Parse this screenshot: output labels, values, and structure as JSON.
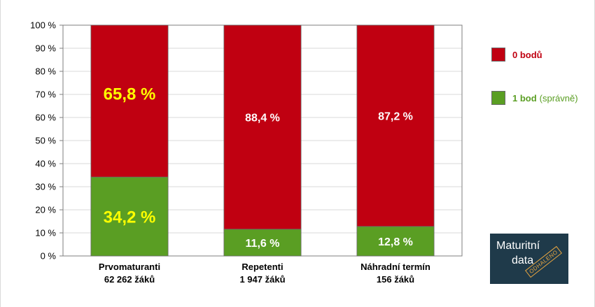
{
  "chart_data": {
    "type": "bar",
    "stacked": true,
    "categories": [
      [
        "Prvomaturanti",
        "62 262 žáků"
      ],
      [
        "Repetenti",
        "1 947 žáků"
      ],
      [
        "Náhradní termín",
        "156 žáků"
      ]
    ],
    "series": [
      {
        "name": "1 bod",
        "name_note": "(správně)",
        "color": "#5a9e23",
        "values": [
          34.2,
          11.6,
          12.8
        ],
        "labels": [
          "34,2 %",
          "11,6 %",
          "12,8 %"
        ]
      },
      {
        "name": "0 bodů",
        "color": "#c00011",
        "values": [
          65.8,
          88.4,
          87.2
        ],
        "labels": [
          "65,8 %",
          "88,4 %",
          "87,2 %"
        ]
      }
    ],
    "highlight_first_category_labels": {
      "color": "#ffff00"
    },
    "y_ticks": [
      "0 %",
      "10 %",
      "20 %",
      "30 %",
      "40 %",
      "50 %",
      "60 %",
      "70 %",
      "80 %",
      "90 %",
      "100 %"
    ],
    "ylim": [
      0,
      100
    ],
    "grid": true,
    "legend_position": "right"
  },
  "legend": {
    "items": [
      {
        "label": "0 bodů",
        "note": "",
        "color": "#c00011"
      },
      {
        "label": "1 bod",
        "note": "(správně)",
        "color": "#5a9e23"
      }
    ]
  },
  "logo": {
    "line1": "Maturitní",
    "line2": "data",
    "stamp": "ODHALENO"
  }
}
